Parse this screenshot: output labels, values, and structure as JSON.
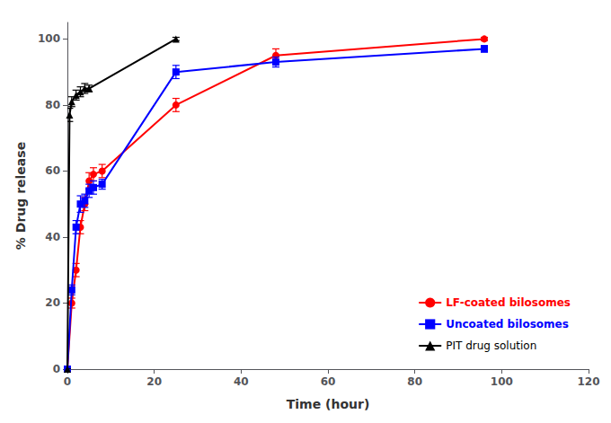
{
  "chart_data": {
    "type": "line",
    "xlabel": "Time (hour)",
    "ylabel": "% Drug release",
    "xlim": [
      0,
      120
    ],
    "ylim": [
      0,
      105
    ],
    "xticks": [
      0,
      20,
      40,
      60,
      80,
      100,
      120
    ],
    "yticks": [
      0,
      20,
      40,
      60,
      80,
      100
    ],
    "grid": false,
    "legend": "lower right",
    "series": [
      {
        "name": "LF-coated bilosomes",
        "color": "#FF0000",
        "marker": "circle",
        "x": [
          0,
          1,
          2,
          3,
          4,
          5,
          6,
          8,
          25,
          48,
          96
        ],
        "values": [
          0,
          20,
          30,
          43,
          50,
          57,
          59,
          60,
          80,
          95,
          100
        ],
        "yerr": [
          0,
          1.5,
          2.0,
          2.0,
          2.0,
          2.5,
          2.0,
          2.0,
          2.0,
          2.0,
          0.5
        ]
      },
      {
        "name": "Uncoated bilosomes",
        "color": "#0000FF",
        "marker": "square",
        "x": [
          0,
          1,
          2,
          3,
          4,
          5,
          6,
          8,
          25,
          48,
          96
        ],
        "values": [
          0,
          24,
          43,
          50,
          51,
          54,
          55,
          56,
          90,
          93,
          97
        ],
        "yerr": [
          0,
          1.5,
          2.0,
          2.5,
          2.0,
          2.0,
          2.0,
          1.5,
          2.0,
          1.5,
          1.0
        ]
      },
      {
        "name": "PIT drug solution",
        "color": "#000000",
        "marker": "triangle",
        "x": [
          0,
          0.5,
          1,
          2,
          3,
          4,
          5,
          25
        ],
        "values": [
          0,
          77,
          81,
          83,
          84,
          85,
          85,
          100
        ],
        "yerr": [
          0,
          2.0,
          1.5,
          1.5,
          1.5,
          1.5,
          1.0,
          0.5
        ]
      }
    ]
  }
}
